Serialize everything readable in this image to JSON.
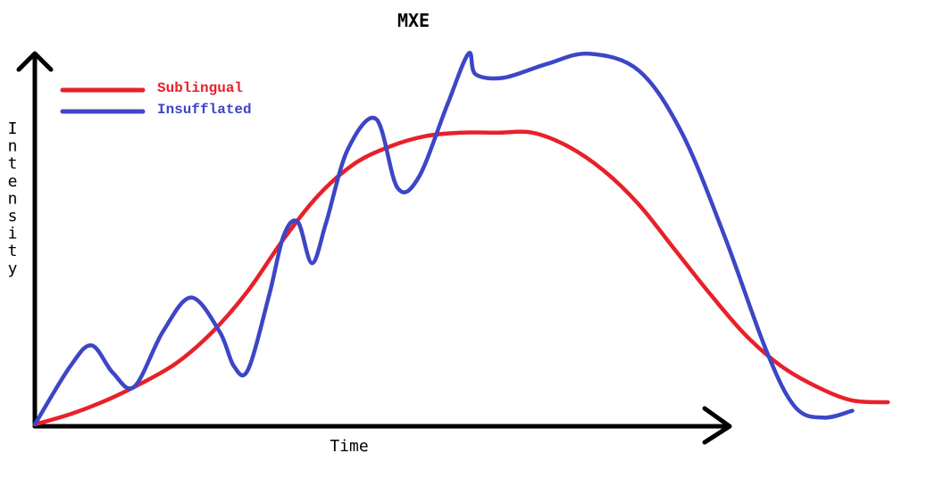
{
  "chart_data": {
    "type": "line",
    "title": "MXE",
    "xlabel": "Time",
    "ylabel": "Intensity",
    "grid": false,
    "legend_placement": "top-left",
    "series": [
      {
        "name": "Sublingual",
        "color": "#e8202a",
        "points": [
          [
            0.0,
            0.0
          ],
          [
            0.05,
            0.03
          ],
          [
            0.1,
            0.07
          ],
          [
            0.15,
            0.12
          ],
          [
            0.2,
            0.18
          ],
          [
            0.25,
            0.27
          ],
          [
            0.3,
            0.39
          ],
          [
            0.35,
            0.54
          ],
          [
            0.4,
            0.67
          ],
          [
            0.45,
            0.76
          ],
          [
            0.5,
            0.81
          ],
          [
            0.55,
            0.84
          ],
          [
            0.6,
            0.85
          ],
          [
            0.65,
            0.85
          ],
          [
            0.7,
            0.85
          ],
          [
            0.75,
            0.81
          ],
          [
            0.8,
            0.74
          ],
          [
            0.85,
            0.64
          ],
          [
            0.9,
            0.51
          ],
          [
            0.95,
            0.38
          ],
          [
            1.0,
            0.26
          ],
          [
            1.05,
            0.17
          ],
          [
            1.1,
            0.11
          ],
          [
            1.15,
            0.07
          ],
          [
            1.2,
            0.065
          ]
        ]
      },
      {
        "name": "Insufflated",
        "color": "#3c46c6",
        "points": [
          [
            0.0,
            0.0
          ],
          [
            0.05,
            0.17
          ],
          [
            0.08,
            0.23
          ],
          [
            0.11,
            0.15
          ],
          [
            0.14,
            0.11
          ],
          [
            0.18,
            0.27
          ],
          [
            0.22,
            0.37
          ],
          [
            0.26,
            0.27
          ],
          [
            0.28,
            0.17
          ],
          [
            0.3,
            0.16
          ],
          [
            0.33,
            0.38
          ],
          [
            0.35,
            0.55
          ],
          [
            0.37,
            0.59
          ],
          [
            0.39,
            0.47
          ],
          [
            0.41,
            0.59
          ],
          [
            0.44,
            0.8
          ],
          [
            0.48,
            0.89
          ],
          [
            0.51,
            0.69
          ],
          [
            0.54,
            0.72
          ],
          [
            0.58,
            0.93
          ],
          [
            0.61,
            1.08
          ],
          [
            0.62,
            1.02
          ],
          [
            0.66,
            1.01
          ],
          [
            0.72,
            1.05
          ],
          [
            0.78,
            1.08
          ],
          [
            0.85,
            1.03
          ],
          [
            0.91,
            0.85
          ],
          [
            0.97,
            0.55
          ],
          [
            1.03,
            0.21
          ],
          [
            1.07,
            0.05
          ],
          [
            1.11,
            0.02
          ],
          [
            1.15,
            0.04
          ]
        ]
      }
    ]
  }
}
